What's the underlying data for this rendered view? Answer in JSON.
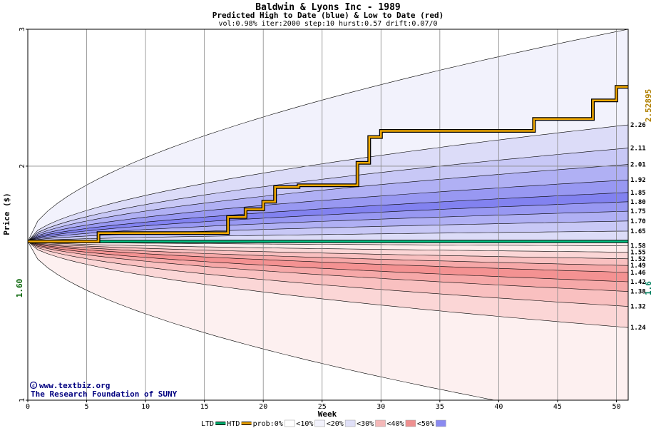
{
  "chart_data": {
    "type": "area",
    "title": "Baldwin & Lyons Inc - 1989",
    "subtitle": "Predicted High to Date (blue) &  Low to Date (red)",
    "params": "vol:0.98% iter:2000 step:10 hurst:0.57 drift:0.07/0",
    "xlabel": "Week",
    "ylabel": "Price ($)",
    "log_scale_y": true,
    "xlim": [
      0,
      51
    ],
    "ylim": [
      1,
      3
    ],
    "x_ticks": [
      0,
      5,
      10,
      15,
      20,
      25,
      30,
      35,
      40,
      45,
      50
    ],
    "y_ticks": [
      1,
      2,
      3
    ],
    "grid": true,
    "start_value": 1.6,
    "start_label": "1.60",
    "right_marker_top": "2.52895",
    "right_marker_bottom": "1.6",
    "band_end_labels": [
      "2.26",
      "2.11",
      "2.01",
      "1.92",
      "1.85",
      "1.80",
      "1.75",
      "1.70",
      "1.65",
      "1.58",
      "1.55",
      "1.52",
      "1.49",
      "1.46",
      "1.42",
      "1.38",
      "1.32",
      "1.24"
    ],
    "high_bands": [
      {
        "end": 3.0,
        "fill": "#f2f2fc"
      },
      {
        "end": 2.26,
        "fill": "#dcdcf8"
      },
      {
        "end": 2.11,
        "fill": "#c8c8f6"
      },
      {
        "end": 2.01,
        "fill": "#b0b0f4"
      },
      {
        "end": 1.92,
        "fill": "#9898f2"
      },
      {
        "end": 1.85,
        "fill": "#8282f0"
      },
      {
        "end": 1.8,
        "fill": "#9898f2"
      },
      {
        "end": 1.75,
        "fill": "#b0b0f4"
      },
      {
        "end": 1.7,
        "fill": "#c8c8f6"
      },
      {
        "end": 1.65,
        "fill": "#dcdcf8"
      },
      {
        "end": 1.58,
        "fill": "#f2f2fc"
      }
    ],
    "low_bands": [
      {
        "end": 1.55,
        "fill": "#fdebeb"
      },
      {
        "end": 1.52,
        "fill": "#fbd6d6"
      },
      {
        "end": 1.49,
        "fill": "#f9c0c0"
      },
      {
        "end": 1.46,
        "fill": "#f6a8a8"
      },
      {
        "end": 1.42,
        "fill": "#f49292"
      },
      {
        "end": 1.38,
        "fill": "#f6a8a8"
      },
      {
        "end": 1.32,
        "fill": "#f9c0c0"
      },
      {
        "end": 1.24,
        "fill": "#fbd6d6"
      },
      {
        "end": 1.0,
        "fill": "#fdf0f0"
      }
    ],
    "outer_low_end": 0.93,
    "htd_series": {
      "x": [
        0,
        6,
        6,
        17,
        17,
        18.5,
        18.5,
        20,
        20,
        21,
        21,
        23,
        23,
        28,
        28,
        29,
        29,
        30,
        30,
        43,
        43,
        48,
        48,
        50,
        50,
        51
      ],
      "price": [
        1.6,
        1.6,
        1.64,
        1.64,
        1.72,
        1.72,
        1.76,
        1.76,
        1.8,
        1.8,
        1.88,
        1.88,
        1.89,
        1.89,
        2.02,
        2.02,
        2.18,
        2.18,
        2.22,
        2.22,
        2.3,
        2.3,
        2.43,
        2.43,
        2.52895,
        2.52895
      ]
    },
    "ltd_value": 1.6,
    "legend": [
      {
        "label": "LTD",
        "color": "#00b070"
      },
      {
        "label": "HTD",
        "color": "#e8a000"
      },
      {
        "label": "prob:0%",
        "color": "#ffffff"
      },
      {
        "label": "<10%",
        "color": "#f2f2fc"
      },
      {
        "label": "<20%",
        "color": "#e0e0f8"
      },
      {
        "label": "<30%",
        "color": "#f4b8b8"
      },
      {
        "label": "<40%",
        "color": "#ee9090"
      },
      {
        "label": "<50%",
        "color": "#8a8af0"
      }
    ]
  },
  "credit": {
    "line1": "www.textbiz.org",
    "line2": "The Research Foundation of SUNY"
  }
}
